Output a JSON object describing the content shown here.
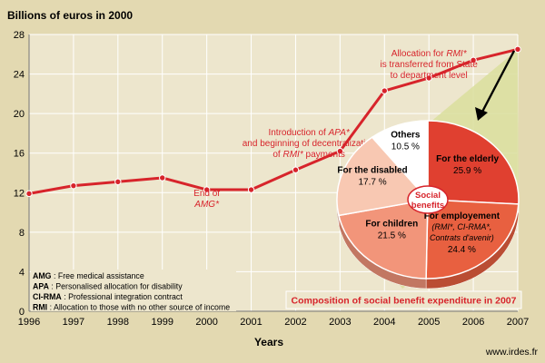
{
  "chart_data": [
    {
      "type": "line",
      "title": "Billions of euros in 2000",
      "xlabel": "Years",
      "ylabel": "",
      "x": [
        1996,
        1997,
        1998,
        1999,
        2000,
        2001,
        2002,
        2003,
        2004,
        2005,
        2006,
        2007
      ],
      "ylim": [
        0,
        28
      ],
      "yticks": [
        0,
        4,
        8,
        12,
        16,
        20,
        24,
        28
      ],
      "grid": true,
      "series": [
        {
          "values": [
            11.9,
            12.7,
            13.1,
            13.5,
            12.3,
            12.3,
            14.3,
            16.2,
            22.3,
            23.6,
            25.4,
            26.5
          ],
          "color": "#d7242b"
        }
      ],
      "annotations": [
        {
          "x": 2000,
          "lines": [
            [
              "End of",
              ""
            ],
            [
              "",
              "AMG*"
            ]
          ]
        },
        {
          "x": 2002.3,
          "lines": [
            [
              "Introduction of ",
              "APA*"
            ],
            [
              "and beginning of decentralization",
              ""
            ],
            [
              "of ",
              "RMI*",
              " payments"
            ]
          ]
        },
        {
          "x": 2005,
          "lines": [
            [
              "Allocation for ",
              "RMI*"
            ],
            [
              "is transferred from State",
              ""
            ],
            [
              "to department level",
              ""
            ]
          ]
        }
      ]
    },
    {
      "type": "pie",
      "title": "Composition of social benefit expenditure in 2007",
      "center_label": [
        "Social",
        "benefits"
      ],
      "slices": [
        {
          "label": "For the elderly",
          "sublabel": "",
          "value": 25.9,
          "value_text": "25.9 %",
          "color": "#e04030"
        },
        {
          "label": "For employement",
          "sublabel": "(RMI*, CI-RMA*, Contrats d'avenir)",
          "value": 24.4,
          "value_text": "24.4 %",
          "color": "#e86040"
        },
        {
          "label": "For children",
          "sublabel": "",
          "value": 21.5,
          "value_text": "21.5 %",
          "color": "#f2957a"
        },
        {
          "label": "For the disabled",
          "sublabel": "",
          "value": 17.7,
          "value_text": "17.7 %",
          "color": "#f8c8b2"
        },
        {
          "label": "Others",
          "sublabel": "",
          "value": 10.5,
          "value_text": "10.5 %",
          "color": "#ffffff"
        }
      ]
    }
  ],
  "glossary": [
    {
      "abbr": "AMG",
      "text": " : Free medical assistance"
    },
    {
      "abbr": "APA",
      "text": " : Personalised allocation for disability"
    },
    {
      "abbr": "CI-RMA",
      "text": " : Professional integration contract"
    },
    {
      "abbr": "RMI",
      "text": " : Allocation to those with no other source of income"
    }
  ],
  "source": "www.irdes.fr",
  "colors": {
    "background": "#e3d9b1",
    "plot": "#ede6cd",
    "grid": "#ffffff",
    "line": "#d7242b",
    "text": "#000000"
  }
}
